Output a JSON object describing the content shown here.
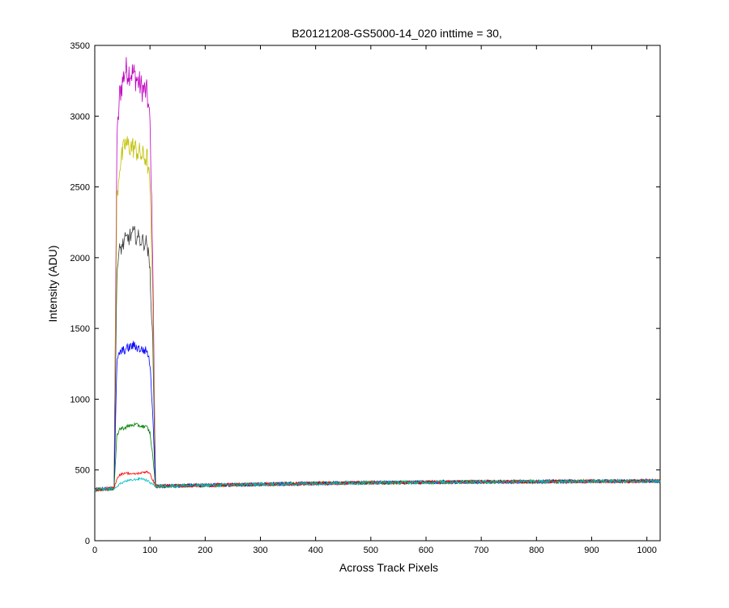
{
  "chart_data": {
    "type": "line",
    "title": "B20121208-GS5000-14_020 inttime = 30,",
    "xlabel": "Across Track Pixels",
    "ylabel": "Intensity (ADU)",
    "xlim": [
      0,
      1024
    ],
    "ylim": [
      0,
      3500
    ],
    "xticks": [
      "0",
      "100",
      "200",
      "300",
      "400",
      "500",
      "600",
      "700",
      "800",
      "900",
      "1000"
    ],
    "yticks": [
      "0",
      "500",
      "1000",
      "1500",
      "2000",
      "2500",
      "3000",
      "3500"
    ],
    "grid": false,
    "legend": "none",
    "baseline": {
      "x": [
        0,
        35,
        110,
        200,
        300,
        400,
        500,
        600,
        700,
        800,
        900,
        1024
      ],
      "y": [
        360,
        370,
        385,
        392,
        398,
        405,
        410,
        413,
        416,
        418,
        420,
        422
      ]
    },
    "series": [
      {
        "color": "#c000c0",
        "pulse": {
          "x": [
            35,
            40,
            45,
            55,
            70,
            85,
            95,
            100,
            105,
            110
          ],
          "y": [
            370,
            2800,
            3150,
            3330,
            3300,
            3200,
            3160,
            2950,
            2000,
            390
          ]
        }
      },
      {
        "color": "#c0c000",
        "pulse": {
          "x": [
            35,
            40,
            45,
            55,
            70,
            85,
            95,
            100,
            105,
            110
          ],
          "y": [
            370,
            2400,
            2650,
            2800,
            2780,
            2720,
            2700,
            2500,
            1700,
            390
          ]
        }
      },
      {
        "color": "#404040",
        "pulse": {
          "x": [
            35,
            40,
            45,
            55,
            70,
            85,
            95,
            100,
            105,
            110
          ],
          "y": [
            370,
            1900,
            2050,
            2120,
            2170,
            2120,
            2100,
            1900,
            1400,
            390
          ]
        }
      },
      {
        "color": "#0000ff",
        "pulse": {
          "x": [
            35,
            40,
            45,
            55,
            70,
            85,
            95,
            100,
            105,
            110
          ],
          "y": [
            370,
            1250,
            1330,
            1350,
            1380,
            1350,
            1340,
            1250,
            900,
            390
          ]
        }
      },
      {
        "color": "#008000",
        "pulse": {
          "x": [
            35,
            40,
            45,
            55,
            70,
            85,
            95,
            100,
            105,
            110
          ],
          "y": [
            370,
            740,
            790,
            800,
            820,
            810,
            800,
            760,
            600,
            390
          ]
        }
      },
      {
        "color": "#ff0000",
        "pulse": {
          "x": [
            35,
            40,
            45,
            55,
            70,
            85,
            95,
            100,
            105,
            110
          ],
          "y": [
            370,
            440,
            465,
            480,
            470,
            480,
            490,
            470,
            430,
            390
          ]
        }
      },
      {
        "color": "#00c0c0",
        "pulse": {
          "x": [
            35,
            40,
            45,
            55,
            70,
            85,
            95,
            100,
            105,
            110
          ],
          "y": [
            360,
            385,
            400,
            420,
            430,
            440,
            425,
            410,
            400,
            385
          ]
        }
      }
    ]
  }
}
